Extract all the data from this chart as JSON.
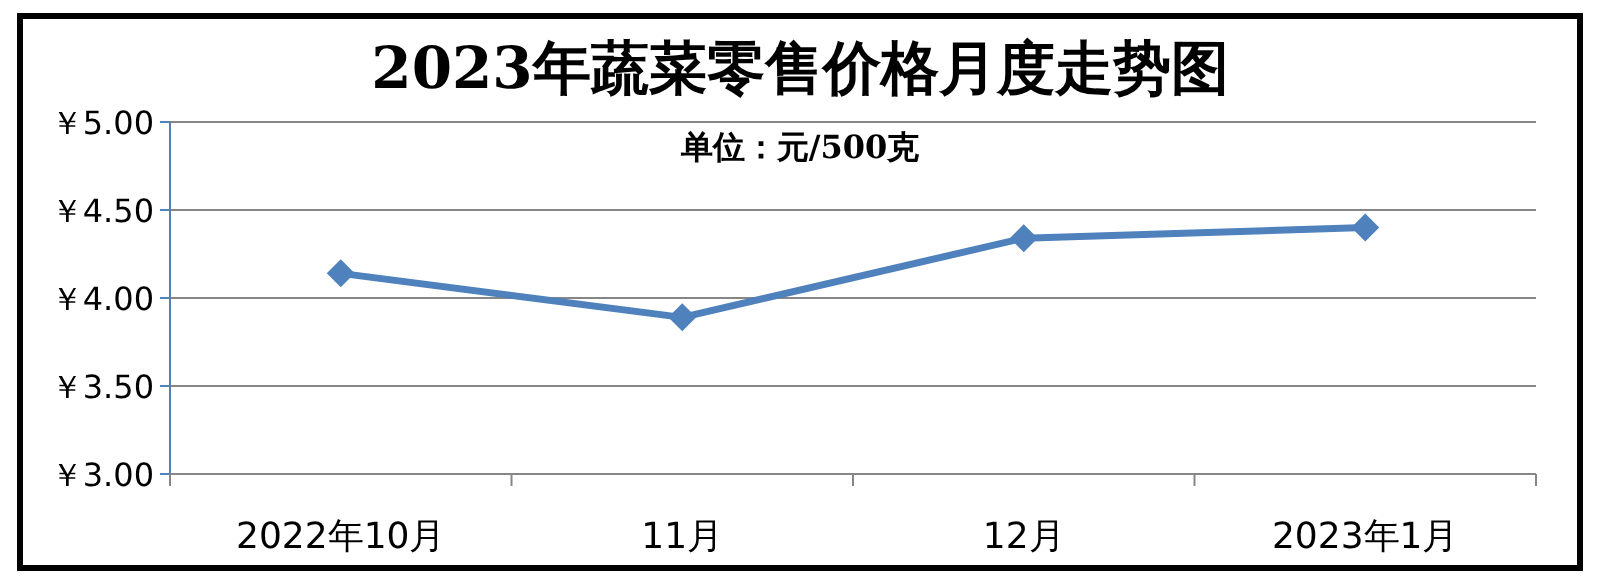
{
  "chart_data": {
    "type": "line",
    "title": "2023年蔬菜零售价格月度走势图",
    "subtitle": "单位：元/500克",
    "categories": [
      "2022年10月",
      "11月",
      "12月",
      "2023年1月"
    ],
    "series": [
      {
        "color": "#4f81bd",
        "values": [
          4.14,
          3.89,
          4.34,
          4.4
        ]
      }
    ],
    "ylim": [
      3,
      5
    ],
    "yticks": [
      {
        "value": 3,
        "label": "￥3.00"
      },
      {
        "value": 3.5,
        "label": "￥3.50"
      },
      {
        "value": 4,
        "label": "￥4.00"
      },
      {
        "value": 4.5,
        "label": "￥4.50"
      },
      {
        "value": 5,
        "label": "￥5.00"
      }
    ],
    "grid": "y",
    "marker": "diamond",
    "line_style": "solid"
  }
}
